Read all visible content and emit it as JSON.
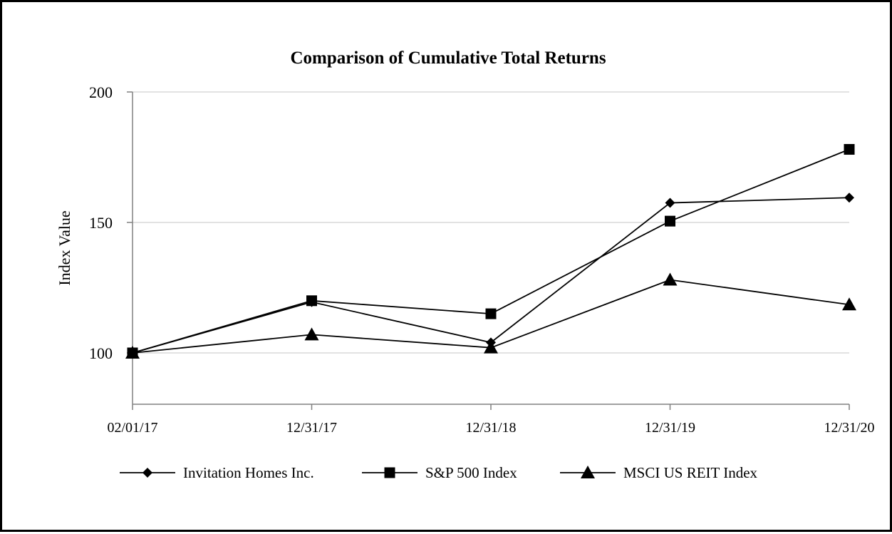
{
  "chart_data": {
    "type": "line",
    "title": "Comparison of Cumulative Total Returns",
    "xlabel": "",
    "ylabel": "Index Value",
    "categories": [
      "02/01/17",
      "12/31/17",
      "12/31/18",
      "12/31/19",
      "12/31/20"
    ],
    "yticks": [
      100,
      150,
      200
    ],
    "ylim": [
      80,
      200
    ],
    "grid": true,
    "legend_position": "bottom",
    "series": [
      {
        "name": "Invitation Homes Inc.",
        "marker": "diamond",
        "values": [
          100,
          119.5,
          104,
          157.5,
          159.5
        ]
      },
      {
        "name": "S&P 500 Index",
        "marker": "square",
        "values": [
          100,
          120,
          115,
          150.5,
          178
        ]
      },
      {
        "name": "MSCI US REIT Index",
        "marker": "triangle",
        "values": [
          100,
          107,
          102,
          128,
          118.5
        ]
      }
    ],
    "colors": {
      "line": "#000000",
      "grid": "#d9d9d9",
      "axis": "#808080",
      "text": "#000000"
    }
  }
}
